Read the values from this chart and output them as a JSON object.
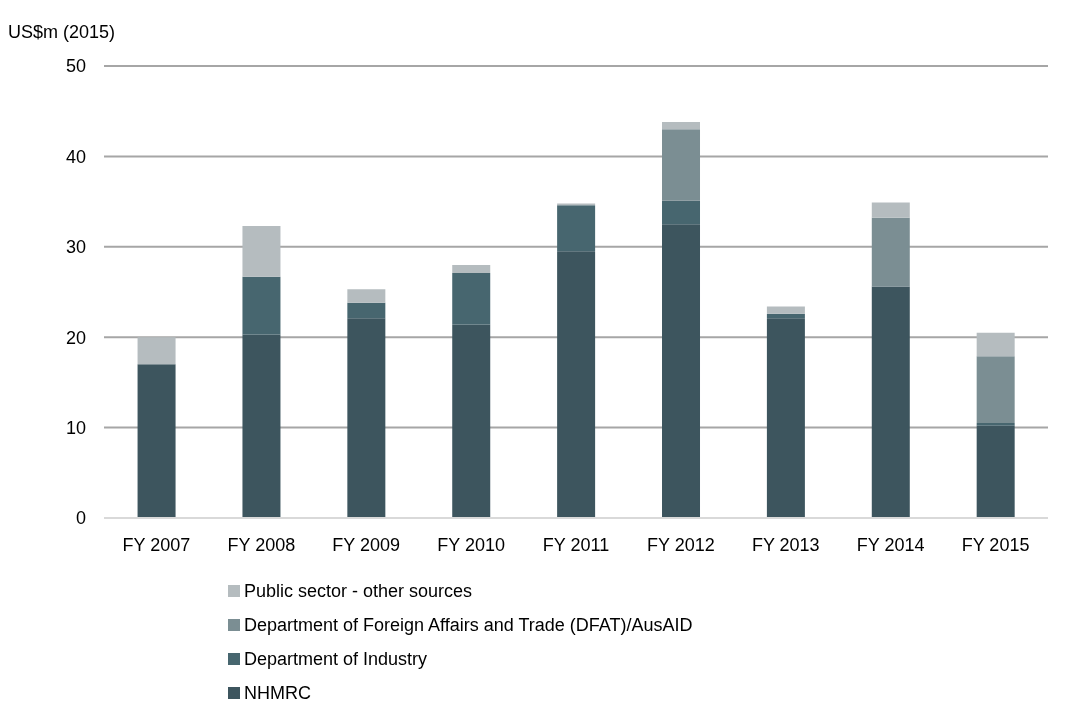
{
  "chart_data": {
    "type": "bar",
    "stacked": true,
    "ylabel": "US$m (2015)",
    "categories": [
      "FY 2007",
      "FY 2008",
      "FY 2009",
      "FY 2010",
      "FY 2011",
      "FY 2012",
      "FY 2013",
      "FY 2014",
      "FY 2015"
    ],
    "series": [
      {
        "name": "NHMRC",
        "color": "#3d555e",
        "values": [
          17.0,
          20.3,
          22.1,
          21.4,
          29.5,
          32.5,
          22.1,
          25.6,
          10.2
        ]
      },
      {
        "name": "Department of Industry",
        "color": "#47666f",
        "values": [
          0,
          6.4,
          1.7,
          5.7,
          5.1,
          2.6,
          0.5,
          0,
          0.3
        ]
      },
      {
        "name": "Department of Foreign Affairs and Trade (DFAT)/AusAID",
        "color": "#7b8e93",
        "values": [
          0,
          0,
          0,
          0,
          0,
          7.9,
          0,
          7.6,
          7.4
        ]
      },
      {
        "name": "Public sector - other sources",
        "color": "#b5bcbf",
        "values": [
          3.0,
          5.6,
          1.5,
          0.9,
          0.2,
          0.8,
          0.8,
          1.7,
          2.6
        ]
      }
    ],
    "ylim": [
      0,
      50
    ],
    "yticks": [
      0,
      10,
      20,
      30,
      40,
      50
    ],
    "grid": "y",
    "legend": "bottom"
  }
}
